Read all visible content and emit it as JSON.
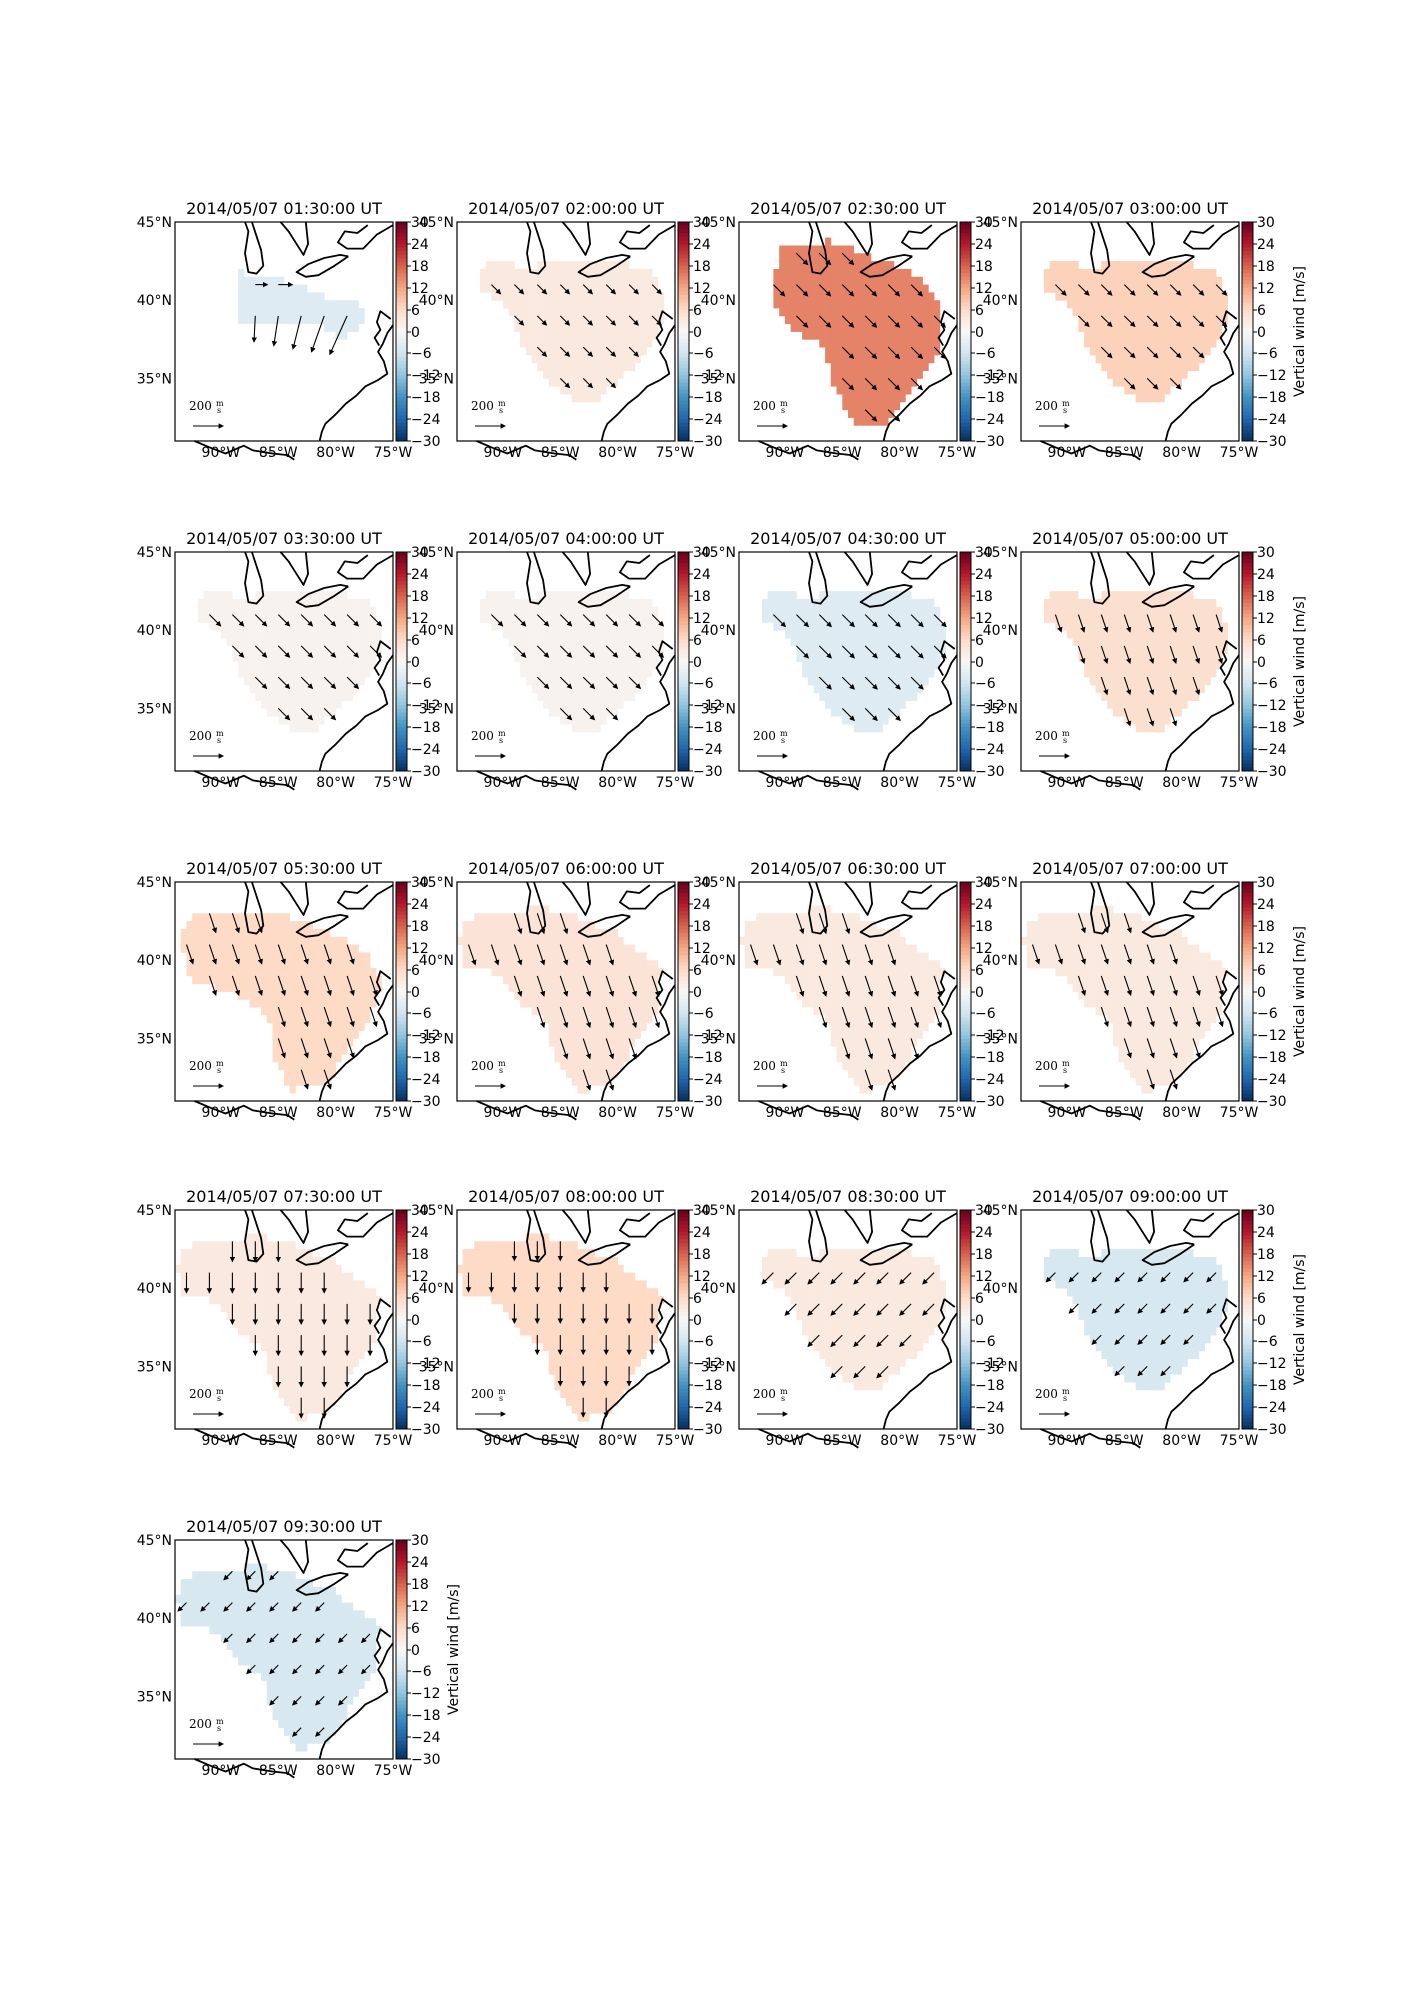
{
  "figure": {
    "colorbar": {
      "ticks": [
        "30",
        "24",
        "18",
        "12",
        "6",
        "0",
        "−6",
        "−12",
        "−18",
        "−24",
        "−30"
      ],
      "label": "Vertical wind [m/s]",
      "range": [
        -30,
        30
      ],
      "colormap": "RdBu_r"
    },
    "lat_labels": [
      "45°N",
      "40°N",
      "35°N"
    ],
    "lon_labels": [
      "90°W",
      "85°W",
      "80°W",
      "75°W"
    ],
    "quiver_key": {
      "value": "200",
      "numerator": "m",
      "denominator": "s"
    },
    "map_extent": {
      "lon": [
        -94,
        -75
      ],
      "lat": [
        31,
        45
      ]
    },
    "panels": [
      {
        "title": "2014/05/07 01:30:00 UT",
        "w": -4,
        "dir": "mixed",
        "len": 1.2,
        "cbar_label": false
      },
      {
        "title": "2014/05/07 02:00:00 UT",
        "w": 3,
        "dir": "SE",
        "len": 0.65,
        "cbar_label": false
      },
      {
        "title": "2014/05/07 02:30:00 UT",
        "w": 15,
        "dir": "SE",
        "len": 0.8,
        "cbar_label": false
      },
      {
        "title": "2014/05/07 03:00:00 UT",
        "w": 7,
        "dir": "SE",
        "len": 0.75,
        "cbar_label": true
      },
      {
        "title": "2014/05/07 03:30:00 UT",
        "w": 1,
        "dir": "SE",
        "len": 0.8,
        "cbar_label": false
      },
      {
        "title": "2014/05/07 04:00:00 UT",
        "w": 1,
        "dir": "SE",
        "len": 0.8,
        "cbar_label": false
      },
      {
        "title": "2014/05/07 04:30:00 UT",
        "w": -4,
        "dir": "SE",
        "len": 0.85,
        "cbar_label": false
      },
      {
        "title": "2014/05/07 05:00:00 UT",
        "w": 5,
        "dir": "SSE",
        "len": 0.9,
        "cbar_label": true
      },
      {
        "title": "2014/05/07 05:30:00 UT",
        "w": 6,
        "dir": "SSE",
        "len": 1.0,
        "cbar_label": false
      },
      {
        "title": "2014/05/07 06:00:00 UT",
        "w": 4,
        "dir": "SSE",
        "len": 1.05,
        "cbar_label": false
      },
      {
        "title": "2014/05/07 06:30:00 UT",
        "w": 3,
        "dir": "SSE",
        "len": 1.05,
        "cbar_label": false
      },
      {
        "title": "2014/05/07 07:00:00 UT",
        "w": 3,
        "dir": "SSE",
        "len": 1.0,
        "cbar_label": true
      },
      {
        "title": "2014/05/07 07:30:00 UT",
        "w": 3,
        "dir": "S",
        "len": 1.0,
        "cbar_label": false
      },
      {
        "title": "2014/05/07 08:00:00 UT",
        "w": 6,
        "dir": "S",
        "len": 0.95,
        "cbar_label": false
      },
      {
        "title": "2014/05/07 08:30:00 UT",
        "w": 3,
        "dir": "SW",
        "len": 0.8,
        "cbar_label": false
      },
      {
        "title": "2014/05/07 09:00:00 UT",
        "w": -5,
        "dir": "SW",
        "len": 0.65,
        "cbar_label": true
      },
      {
        "title": "2014/05/07 09:30:00 UT",
        "w": -5,
        "dir": "SW",
        "len": 0.6,
        "cbar_label": true
      }
    ]
  }
}
